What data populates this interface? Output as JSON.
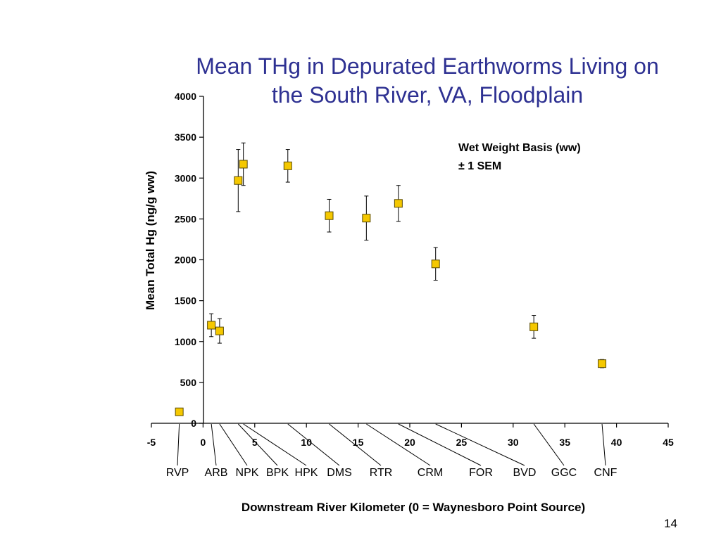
{
  "slide": {
    "title_line1": "Mean THg in Depurated Earthworms Living on",
    "title_line2": "the South River, VA, Floodplain",
    "page_number": "14"
  },
  "chart_data": {
    "type": "scatter",
    "title": "Mean THg in Depurated Earthworms Living on the South River, VA, Floodplain",
    "xlabel": "Downstream River Kilometer (0 = Waynesboro Point Source)",
    "ylabel": "Mean Total Hg (ng/g ww)",
    "xlim": [
      -5,
      45
    ],
    "ylim": [
      0,
      4000
    ],
    "x_ticks": [
      -5,
      0,
      5,
      10,
      15,
      20,
      25,
      30,
      35,
      40,
      45
    ],
    "y_ticks": [
      0,
      500,
      1000,
      1500,
      2000,
      2500,
      3000,
      3500,
      4000
    ],
    "annotation_lines": [
      "Wet Weight Basis (ww)",
      "± 1 SEM"
    ],
    "marker_color": "#f5c800",
    "marker_edge_color": "#5a4a00",
    "points": [
      {
        "x": -2.3,
        "y": 140,
        "err": 0
      },
      {
        "x": 0.8,
        "y": 1200,
        "err": 140
      },
      {
        "x": 1.6,
        "y": 1130,
        "err": 150
      },
      {
        "x": 3.4,
        "y": 2970,
        "err": 380
      },
      {
        "x": 3.9,
        "y": 3170,
        "err": 260
      },
      {
        "x": 8.2,
        "y": 3150,
        "err": 200
      },
      {
        "x": 12.2,
        "y": 2540,
        "err": 200
      },
      {
        "x": 15.8,
        "y": 2510,
        "err": 270
      },
      {
        "x": 18.9,
        "y": 2690,
        "err": 220
      },
      {
        "x": 22.5,
        "y": 1950,
        "err": 200
      },
      {
        "x": 32.0,
        "y": 1180,
        "err": 140
      },
      {
        "x": 38.6,
        "y": 730,
        "err": 50
      }
    ],
    "site_labels": [
      {
        "label": "RVP",
        "x": -2.3
      },
      {
        "label": "ARB",
        "x": 0.8
      },
      {
        "label": "NPK",
        "x": 1.6
      },
      {
        "label": "BPK",
        "x": 3.4
      },
      {
        "label": "HPK",
        "x": 3.9
      },
      {
        "label": "DMS",
        "x": 8.2
      },
      {
        "label": "RTR",
        "x": 12.2
      },
      {
        "label": "CRM",
        "x": 15.8
      },
      {
        "label": "FOR",
        "x": 18.9
      },
      {
        "label": "BVD",
        "x": 22.5
      },
      {
        "label": "GGC",
        "x": 32.0
      },
      {
        "label": "CNF",
        "x": 38.6
      }
    ]
  }
}
